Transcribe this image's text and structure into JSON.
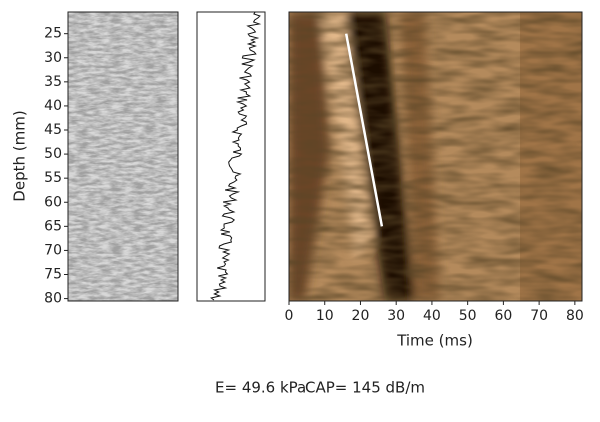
{
  "chart_data": {
    "type": "image",
    "ylabel": "Depth (mm)",
    "xlabel": "Time (ms)",
    "ylim": [
      20.5,
      80.5
    ],
    "yticks": [
      25,
      30,
      35,
      40,
      45,
      50,
      55,
      60,
      65,
      70,
      75,
      80
    ],
    "xlim": [
      0,
      82
    ],
    "xticks": [
      0,
      10,
      20,
      30,
      40,
      50,
      60,
      70,
      80
    ],
    "line": {
      "color": "#ffffff",
      "x": [
        16,
        26
      ],
      "y": [
        25,
        65
      ]
    },
    "footer": [
      "E= 49.6 kPa",
      "CAP= 145 dB/m"
    ]
  }
}
